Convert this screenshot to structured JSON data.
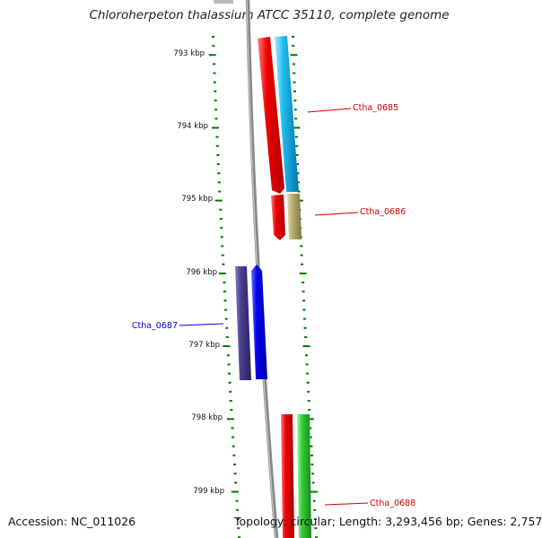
{
  "header": {
    "title": "Chloroherpeton thalassium ATCC 35110, complete genome"
  },
  "footer": {
    "accession": "Accession: NC_011026",
    "topology": "Topology: circular; Length: 3,293,456 bp; Genes: 2,757"
  },
  "scale": {
    "tick_labels": [
      "793 kbp",
      "794 kbp",
      "795 kbp",
      "796 kbp",
      "797 kbp",
      "798 kbp",
      "799 kbp"
    ],
    "tick_color": "#007700"
  },
  "genes": [
    {
      "label": "Ctha_0685",
      "label_color": "#cc0000"
    },
    {
      "label": "Ctha_0686",
      "label_color": "#cc0000"
    },
    {
      "label": "Ctha_0687",
      "label_color": "#0000cc"
    },
    {
      "label": "Ctha_0688",
      "label_color": "#cc0000"
    }
  ],
  "colors": {
    "backbone": "#888888",
    "red": "#ee0000",
    "cyan": "#22bbee",
    "khaki": "#b8b070",
    "indigo": "#4a4090",
    "blue": "#0000ee",
    "green": "#33cc33"
  }
}
